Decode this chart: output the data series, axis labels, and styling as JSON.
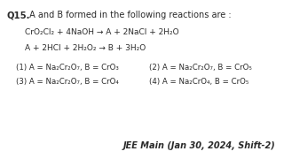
{
  "bg_color": "#ffffff",
  "text_color": "#2a2a2a",
  "figsize": [
    3.2,
    1.8
  ],
  "dpi": 100,
  "q_number": "Q15.",
  "q_text": " A and B formed in the following reactions are :",
  "eq1": "CrO₂Cl₂ + 4NaOH → A + 2NaCl + 2H₂O",
  "eq2": "A + 2HCl + 2H₂O₂ → B + 3H₂O",
  "opt1": "(1) A = Na₂Cr₂O₇, B = CrO₃",
  "opt2": "(2) A = Na₂Cr₂O₇, B = CrO₅",
  "opt3": "(3) A = Na₂Cr₂O₇, B = CrO₄",
  "opt4": "(4) A = Na₂CrO₄, B = CrO₅",
  "footer": "JEE Main (Jan 30, 2024, Shift-2)"
}
